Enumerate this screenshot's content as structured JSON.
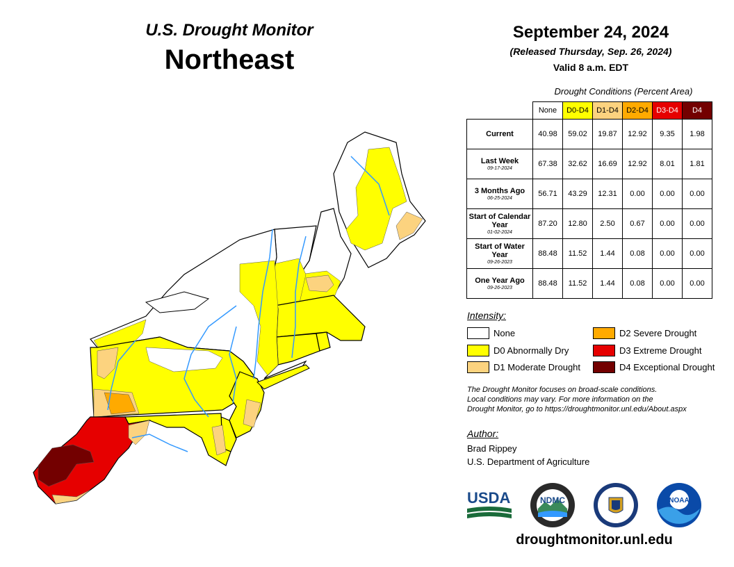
{
  "header": {
    "title": "U.S. Drought Monitor",
    "region": "Northeast",
    "date": "September 24, 2024",
    "released": "(Released Thursday, Sep. 26, 2024)",
    "valid": "Valid 8 a.m. EDT"
  },
  "table": {
    "caption": "Drought Conditions (Percent Area)",
    "columns": [
      {
        "label": "None",
        "color": "#ffffff",
        "text_color": "#000000"
      },
      {
        "label": "D0-D4",
        "color": "#ffff00",
        "text_color": "#000000"
      },
      {
        "label": "D1-D4",
        "color": "#fcd37f",
        "text_color": "#000000"
      },
      {
        "label": "D2-D4",
        "color": "#ffaa00",
        "text_color": "#000000"
      },
      {
        "label": "D3-D4",
        "color": "#e60000",
        "text_color": "#ffffff"
      },
      {
        "label": "D4",
        "color": "#730000",
        "text_color": "#ffffff"
      }
    ],
    "rows": [
      {
        "label": "Current",
        "date": "",
        "values": [
          "40.98",
          "59.02",
          "19.87",
          "12.92",
          "9.35",
          "1.98"
        ]
      },
      {
        "label": "Last Week",
        "date": "09-17-2024",
        "values": [
          "67.38",
          "32.62",
          "16.69",
          "12.92",
          "8.01",
          "1.81"
        ]
      },
      {
        "label": "3 Months Ago",
        "date": "06-25-2024",
        "values": [
          "56.71",
          "43.29",
          "12.31",
          "0.00",
          "0.00",
          "0.00"
        ]
      },
      {
        "label": "Start of Calendar Year",
        "date": "01-02-2024",
        "values": [
          "87.20",
          "12.80",
          "2.50",
          "0.67",
          "0.00",
          "0.00"
        ]
      },
      {
        "label": "Start of Water Year",
        "date": "09-26-2023",
        "values": [
          "88.48",
          "11.52",
          "1.44",
          "0.08",
          "0.00",
          "0.00"
        ]
      },
      {
        "label": "One Year Ago",
        "date": "09-26-2023",
        "values": [
          "88.48",
          "11.52",
          "1.44",
          "0.08",
          "0.00",
          "0.00"
        ]
      }
    ]
  },
  "legend": {
    "title": "Intensity:",
    "items": [
      {
        "label": "None",
        "color": "#ffffff"
      },
      {
        "label": "D0 Abnormally Dry",
        "color": "#ffff00"
      },
      {
        "label": "D1 Moderate Drought",
        "color": "#fcd37f"
      },
      {
        "label": "D2 Severe Drought",
        "color": "#ffaa00"
      },
      {
        "label": "D3 Extreme Drought",
        "color": "#e60000"
      },
      {
        "label": "D4 Exceptional Drought",
        "color": "#730000"
      }
    ]
  },
  "disclaimer": [
    "The Drought Monitor focuses on broad-scale conditions.",
    "Local conditions may vary. For more information on the",
    "Drought Monitor, go to https://droughtmonitor.unl.edu/About.aspx"
  ],
  "author": {
    "title": "Author:",
    "name": "Brad Rippey",
    "org": "U.S. Department of Agriculture"
  },
  "logos": {
    "usda": "USDA",
    "ndmc": "NDMC",
    "noaa": "NOAA"
  },
  "website": "droughtmonitor.unl.edu",
  "colors": {
    "water": "#3399ff",
    "border": "#000000"
  }
}
